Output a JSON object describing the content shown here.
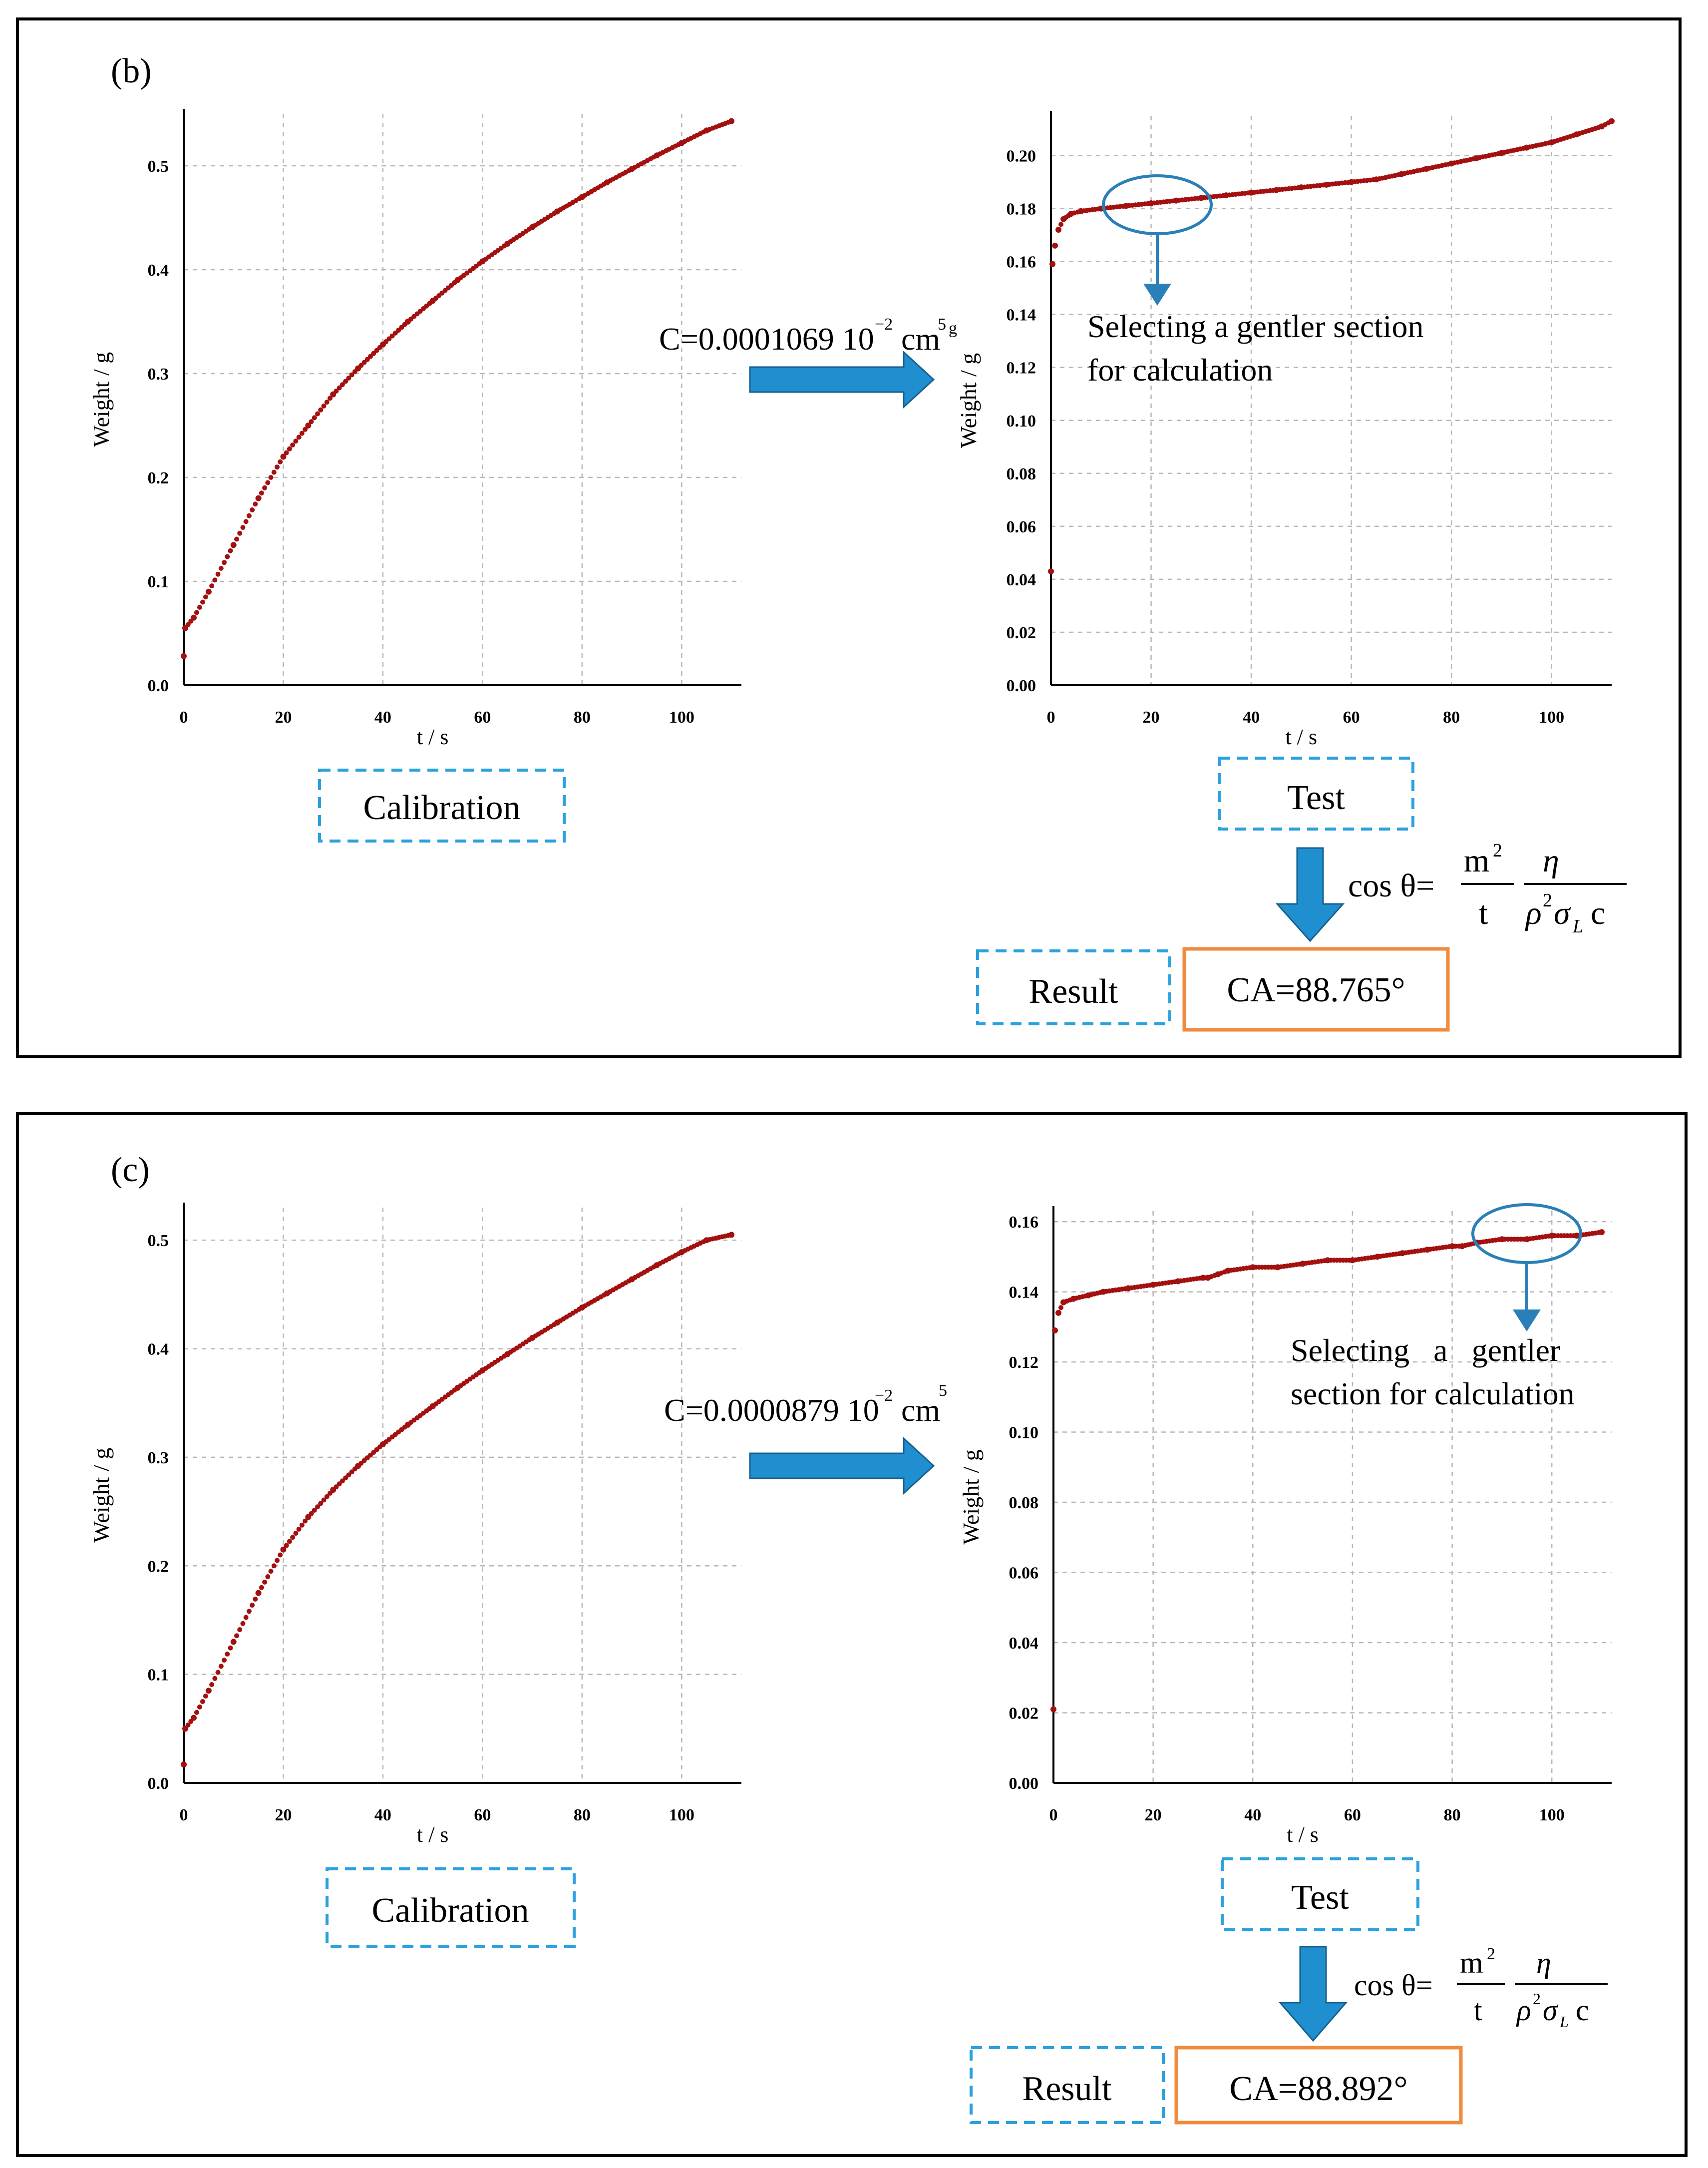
{
  "panels": [
    {
      "id": "b",
      "label": "(b)",
      "constant": "C=0.0001069 10",
      "constant_exp": "−2",
      "constant_unit": "cm",
      "constant_unit_exp": "5",
      "constant_trailing": "g",
      "calibration_box": "Calibration",
      "test_box": "Test",
      "result_box": "Result",
      "ca_value": "CA=88.765°",
      "annotation": [
        "Selecting a gentler section",
        "for calculation"
      ]
    },
    {
      "id": "c",
      "label": "(c)",
      "constant": "C=0.0000879 10",
      "constant_exp": "−2",
      "constant_unit": "cm",
      "constant_unit_exp": "5",
      "constant_trailing": "",
      "calibration_box": "Calibration",
      "test_box": "Test",
      "result_box": "Result",
      "ca_value": "CA=88.892°",
      "annotation": [
        "Selecting   a   gentler",
        "section for calculation"
      ]
    }
  ],
  "formula": {
    "lhs": "cos θ=",
    "m": "m",
    "m_exp": "2",
    "t": "t",
    "eta": "η",
    "rho": "ρ",
    "rho_exp": "2",
    "sigma": "σ",
    "sigma_sub": "L",
    "c": "c"
  },
  "chart_data": [
    {
      "type": "scatter",
      "panel": "b",
      "role": "calibration",
      "xlabel": "t / s",
      "ylabel": "Weight / g",
      "xlim": [
        0,
        112
      ],
      "ylim": [
        0,
        0.55
      ],
      "xticks": [
        0,
        20,
        40,
        60,
        80,
        100
      ],
      "yticks": [
        0.0,
        0.1,
        0.2,
        0.3,
        0.4,
        0.5
      ],
      "x": [
        0,
        0.3,
        2,
        5,
        10,
        15,
        20,
        25,
        30,
        35,
        40,
        45,
        50,
        55,
        60,
        65,
        70,
        75,
        80,
        85,
        90,
        95,
        100,
        105,
        110
      ],
      "y": [
        0.028,
        0.055,
        0.065,
        0.09,
        0.135,
        0.18,
        0.22,
        0.25,
        0.28,
        0.305,
        0.328,
        0.35,
        0.37,
        0.39,
        0.408,
        0.425,
        0.441,
        0.456,
        0.47,
        0.484,
        0.497,
        0.51,
        0.522,
        0.534,
        0.543
      ]
    },
    {
      "type": "scatter",
      "panel": "b",
      "role": "test",
      "xlabel": "t / s",
      "ylabel": "Weight / g",
      "xlim": [
        0,
        112
      ],
      "ylim": [
        0,
        0.215
      ],
      "xticks": [
        0,
        20,
        40,
        60,
        80,
        100
      ],
      "yticks": [
        0.0,
        0.02,
        0.04,
        0.06,
        0.08,
        0.1,
        0.12,
        0.14,
        0.16,
        0.18,
        0.2
      ],
      "x": [
        0,
        0.3,
        0.8,
        1.5,
        2.5,
        4,
        6,
        10,
        15,
        20,
        25,
        30,
        35,
        40,
        45,
        50,
        55,
        60,
        65,
        70,
        75,
        80,
        85,
        90,
        95,
        100,
        105,
        110,
        112
      ],
      "y": [
        0.043,
        0.159,
        0.166,
        0.172,
        0.176,
        0.178,
        0.179,
        0.18,
        0.181,
        0.182,
        0.183,
        0.184,
        0.185,
        0.186,
        0.187,
        0.188,
        0.189,
        0.19,
        0.191,
        0.193,
        0.195,
        0.197,
        0.199,
        0.201,
        0.203,
        0.205,
        0.208,
        0.211,
        0.213
      ]
    },
    {
      "type": "scatter",
      "panel": "c",
      "role": "calibration",
      "xlabel": "t / s",
      "ylabel": "Weight / g",
      "xlim": [
        0,
        112
      ],
      "ylim": [
        0,
        0.53
      ],
      "xticks": [
        0,
        20,
        40,
        60,
        80,
        100
      ],
      "yticks": [
        0.0,
        0.1,
        0.2,
        0.3,
        0.4,
        0.5
      ],
      "x": [
        0,
        0.3,
        2,
        5,
        10,
        15,
        20,
        25,
        30,
        35,
        40,
        45,
        50,
        55,
        60,
        65,
        70,
        75,
        80,
        85,
        90,
        95,
        100,
        105,
        110
      ],
      "y": [
        0.017,
        0.05,
        0.06,
        0.085,
        0.13,
        0.175,
        0.215,
        0.245,
        0.27,
        0.292,
        0.312,
        0.33,
        0.347,
        0.364,
        0.38,
        0.395,
        0.41,
        0.424,
        0.438,
        0.451,
        0.464,
        0.477,
        0.489,
        0.5,
        0.505
      ]
    },
    {
      "type": "scatter",
      "panel": "c",
      "role": "test",
      "xlabel": "t / s",
      "ylabel": "Weight / g",
      "xlim": [
        0,
        112
      ],
      "ylim": [
        0,
        0.163
      ],
      "xticks": [
        0,
        20,
        40,
        60,
        80,
        100
      ],
      "yticks": [
        0.0,
        0.02,
        0.04,
        0.06,
        0.08,
        0.1,
        0.12,
        0.14,
        0.16
      ],
      "x": [
        0,
        0.3,
        1,
        2,
        4,
        7,
        10,
        15,
        20,
        25,
        30,
        31,
        33,
        35,
        40,
        45,
        50,
        55,
        60,
        65,
        70,
        75,
        80,
        82,
        85,
        90,
        95,
        100,
        105,
        110
      ],
      "y": [
        0.021,
        0.129,
        0.134,
        0.137,
        0.138,
        0.139,
        0.14,
        0.141,
        0.142,
        0.143,
        0.144,
        0.144,
        0.145,
        0.146,
        0.147,
        0.147,
        0.148,
        0.149,
        0.149,
        0.15,
        0.151,
        0.152,
        0.153,
        0.153,
        0.154,
        0.155,
        0.155,
        0.156,
        0.156,
        0.157
      ]
    }
  ]
}
